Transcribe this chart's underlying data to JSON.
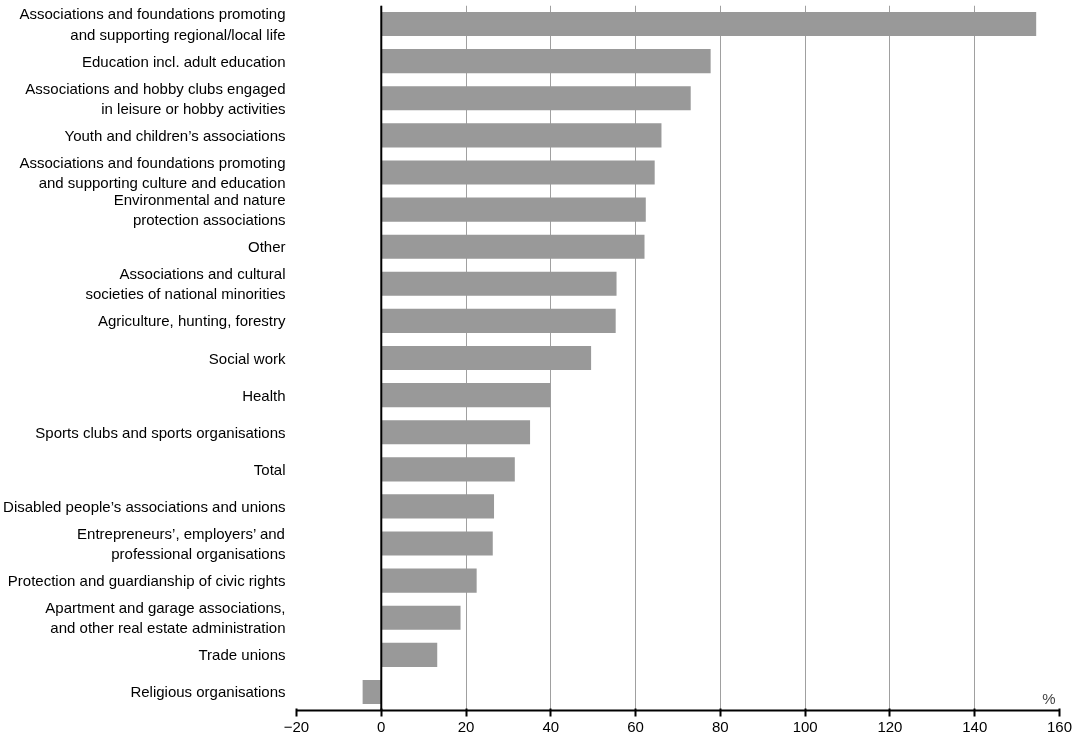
{
  "chart_data": {
    "type": "bar",
    "orientation": "horizontal",
    "xlabel": "%",
    "categories": [
      "Associations and foundations promoting\nand supporting regional/local life",
      "Education incl. adult education",
      "Associations and hobby clubs engaged\nin leisure or hobby activities",
      "Youth and children’s associations",
      "Associations and foundations promoting\nand supporting culture and education",
      "Environmental and nature\nprotection associations",
      "Other",
      "Associations and cultural\nsocieties of national minorities",
      "Agriculture, hunting, forestry",
      "Social work",
      "Health",
      "Sports clubs and sports organisations",
      "Total",
      "Disabled people’s associations and unions",
      "Entrepreneurs’, employers’ and\nprofessional organisations",
      "Protection and guardianship of civic rights",
      "Apartment and garage associations,\nand other real estate administration",
      "Trade unions",
      "Religious organisations"
    ],
    "values": [
      154.5,
      77.7,
      73.0,
      66.1,
      64.5,
      62.4,
      62.1,
      55.5,
      55.3,
      49.5,
      39.9,
      35.1,
      31.5,
      26.6,
      26.3,
      22.5,
      18.7,
      13.2,
      -4.4
    ],
    "color": "#999999",
    "xlim": [
      -20,
      160
    ],
    "xticks": [
      -20,
      0,
      20,
      40,
      60,
      80,
      100,
      120,
      140,
      160
    ],
    "grid": "x"
  }
}
